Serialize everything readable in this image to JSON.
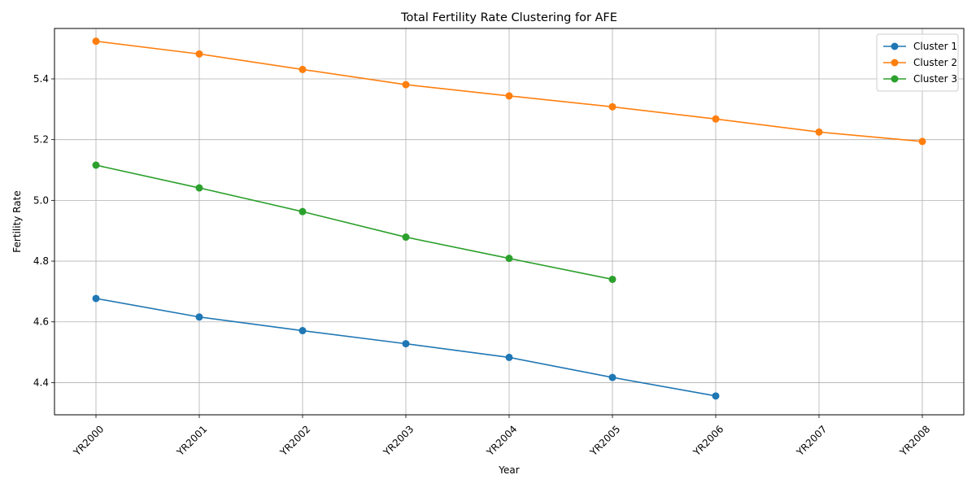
{
  "chart_data": {
    "type": "line",
    "title": "Total Fertility Rate Clustering for AFE",
    "xlabel": "Year",
    "ylabel": "Fertility Rate",
    "categories": [
      "YR2000",
      "YR2001",
      "YR2002",
      "YR2003",
      "YR2004",
      "YR2005",
      "YR2006",
      "YR2007",
      "YR2008"
    ],
    "ylim": [
      4.294,
      5.566
    ],
    "yticks": [
      4.4,
      4.6,
      4.8,
      5.0,
      5.2,
      5.4
    ],
    "ytick_labels": [
      "4.4",
      "4.6",
      "4.8",
      "5.0",
      "5.2",
      "5.4"
    ],
    "grid": true,
    "legend_position": "top-right",
    "marker": "circle",
    "series": [
      {
        "name": "Cluster 1",
        "color": "#1f77b4",
        "values": [
          4.677,
          4.616,
          4.571,
          4.528,
          4.483,
          4.417,
          4.356,
          null,
          null
        ]
      },
      {
        "name": "Cluster 2",
        "color": "#ff7f0e",
        "values": [
          5.524,
          5.482,
          5.431,
          5.381,
          5.344,
          5.308,
          5.268,
          5.225,
          5.194
        ]
      },
      {
        "name": "Cluster 3",
        "color": "#2ca02c",
        "values": [
          5.116,
          5.041,
          4.963,
          4.879,
          4.809,
          4.74,
          null,
          null,
          null
        ]
      }
    ]
  }
}
